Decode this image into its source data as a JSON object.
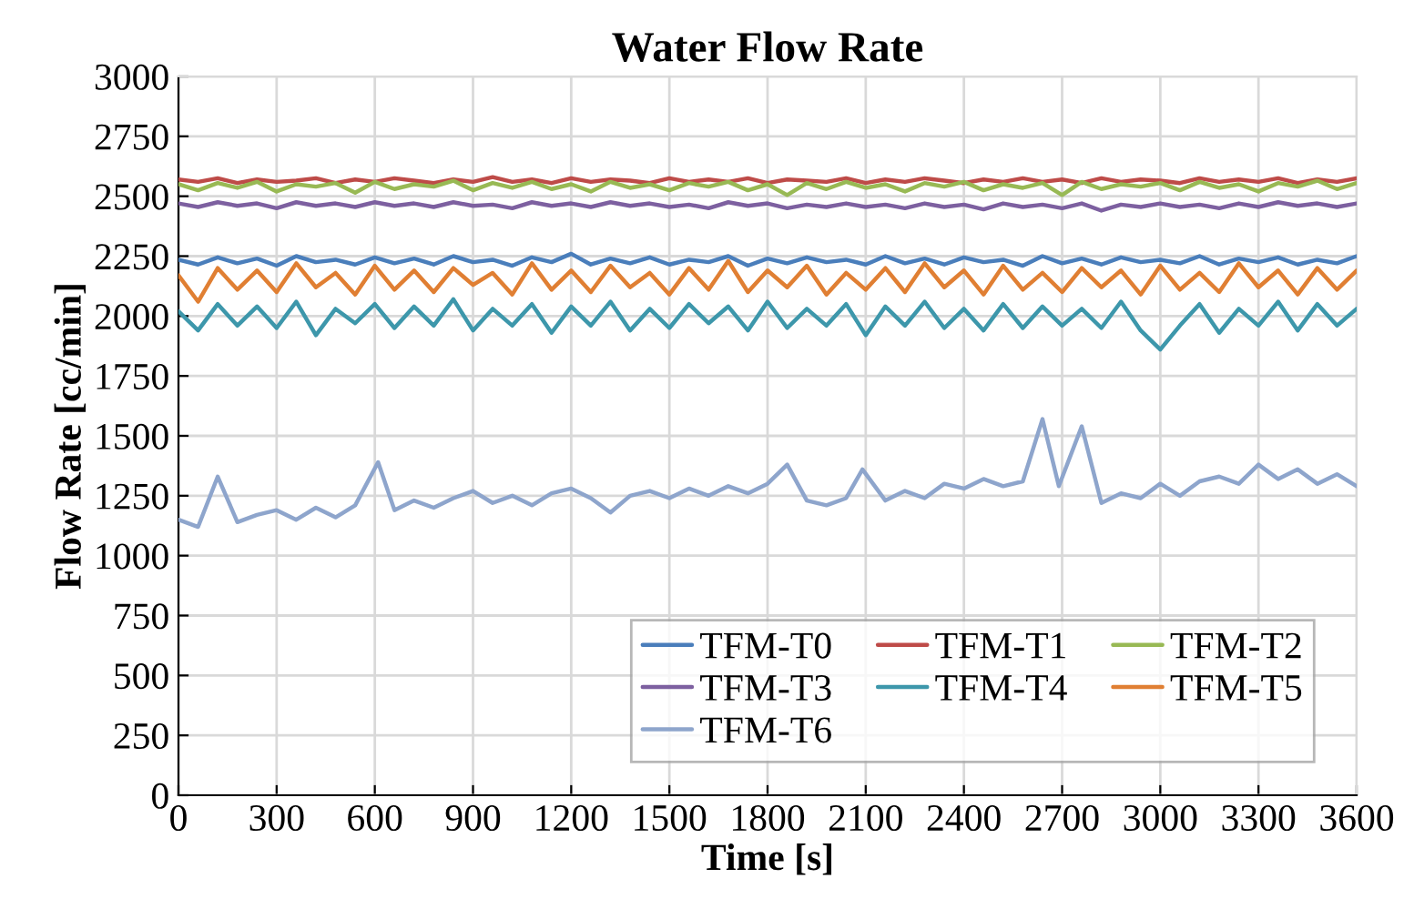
{
  "chart_data": {
    "type": "line",
    "title": "Water Flow Rate",
    "xlabel": "Time [s]",
    "ylabel": "Flow Rate [cc/min]",
    "x": [
      0,
      60,
      120,
      180,
      240,
      300,
      360,
      420,
      480,
      540,
      600,
      660,
      720,
      780,
      840,
      900,
      960,
      1020,
      1080,
      1140,
      1200,
      1260,
      1320,
      1380,
      1440,
      1500,
      1560,
      1620,
      1680,
      1740,
      1800,
      1860,
      1920,
      1980,
      2040,
      2100,
      2160,
      2220,
      2280,
      2340,
      2400,
      2460,
      2520,
      2580,
      2640,
      2700,
      2760,
      2820,
      2880,
      2940,
      3000,
      3060,
      3120,
      3180,
      3240,
      3300,
      3360,
      3420,
      3480,
      3540,
      3600
    ],
    "series": [
      {
        "name": "TFM-T0",
        "color": "#4a7ebb",
        "values": [
          2235,
          2215,
          2245,
          2220,
          2240,
          2210,
          2250,
          2225,
          2235,
          2215,
          2245,
          2220,
          2240,
          2215,
          2250,
          2225,
          2235,
          2210,
          2245,
          2225,
          2260,
          2215,
          2240,
          2220,
          2245,
          2215,
          2235,
          2225,
          2250,
          2210,
          2240,
          2220,
          2245,
          2225,
          2235,
          2215,
          2250,
          2220,
          2240,
          2215,
          2245,
          2225,
          2235,
          2210,
          2250,
          2220,
          2240,
          2215,
          2245,
          2225,
          2235,
          2220,
          2250,
          2215,
          2240,
          2225,
          2245,
          2215,
          2235,
          2220,
          2250
        ]
      },
      {
        "name": "TFM-T1",
        "color": "#be4b48",
        "values": [
          2570,
          2560,
          2575,
          2555,
          2570,
          2560,
          2565,
          2575,
          2555,
          2570,
          2560,
          2575,
          2565,
          2555,
          2570,
          2560,
          2580,
          2560,
          2570,
          2555,
          2575,
          2560,
          2570,
          2565,
          2555,
          2575,
          2560,
          2570,
          2560,
          2575,
          2555,
          2570,
          2565,
          2560,
          2575,
          2555,
          2570,
          2560,
          2575,
          2565,
          2555,
          2570,
          2560,
          2575,
          2560,
          2570,
          2555,
          2575,
          2560,
          2570,
          2565,
          2555,
          2575,
          2560,
          2570,
          2560,
          2575,
          2555,
          2570,
          2560,
          2575
        ]
      },
      {
        "name": "TFM-T2",
        "color": "#98b954",
        "values": [
          2550,
          2525,
          2555,
          2535,
          2560,
          2520,
          2550,
          2540,
          2555,
          2515,
          2560,
          2530,
          2550,
          2540,
          2565,
          2525,
          2555,
          2535,
          2560,
          2530,
          2550,
          2520,
          2560,
          2535,
          2550,
          2525,
          2555,
          2540,
          2560,
          2525,
          2550,
          2505,
          2555,
          2530,
          2560,
          2535,
          2550,
          2520,
          2555,
          2540,
          2560,
          2525,
          2550,
          2535,
          2555,
          2505,
          2560,
          2530,
          2550,
          2540,
          2555,
          2525,
          2560,
          2535,
          2550,
          2520,
          2555,
          2540,
          2565,
          2530,
          2555
        ]
      },
      {
        "name": "TFM-T3",
        "color": "#7d60a0",
        "values": [
          2470,
          2455,
          2475,
          2460,
          2470,
          2450,
          2475,
          2460,
          2470,
          2455,
          2475,
          2460,
          2470,
          2455,
          2475,
          2460,
          2465,
          2450,
          2475,
          2460,
          2470,
          2455,
          2475,
          2460,
          2470,
          2455,
          2465,
          2450,
          2475,
          2460,
          2470,
          2450,
          2465,
          2455,
          2470,
          2455,
          2465,
          2450,
          2470,
          2455,
          2465,
          2445,
          2470,
          2455,
          2465,
          2450,
          2470,
          2440,
          2465,
          2455,
          2470,
          2455,
          2465,
          2450,
          2470,
          2455,
          2475,
          2460,
          2470,
          2455,
          2470
        ]
      },
      {
        "name": "TFM-T4",
        "color": "#3d97ab",
        "values": [
          2020,
          1940,
          2050,
          1960,
          2040,
          1950,
          2060,
          1920,
          2030,
          1970,
          2050,
          1950,
          2040,
          1960,
          2070,
          1940,
          2030,
          1960,
          2050,
          1930,
          2040,
          1960,
          2060,
          1940,
          2030,
          1950,
          2050,
          1970,
          2040,
          1940,
          2060,
          1950,
          2030,
          1960,
          2050,
          1920,
          2040,
          1960,
          2060,
          1950,
          2030,
          1940,
          2050,
          1950,
          2040,
          1960,
          2030,
          1950,
          2060,
          1940,
          1860,
          1960,
          2050,
          1930,
          2030,
          1960,
          2060,
          1940,
          2050,
          1960,
          2030
        ]
      },
      {
        "name": "TFM-T5",
        "color": "#e07f33",
        "values": [
          2170,
          2060,
          2200,
          2110,
          2190,
          2100,
          2220,
          2120,
          2180,
          2090,
          2210,
          2110,
          2190,
          2100,
          2200,
          2130,
          2180,
          2090,
          2220,
          2110,
          2190,
          2100,
          2210,
          2120,
          2180,
          2090,
          2200,
          2110,
          2230,
          2100,
          2190,
          2120,
          2210,
          2090,
          2180,
          2110,
          2200,
          2100,
          2220,
          2120,
          2190,
          2090,
          2210,
          2110,
          2180,
          2100,
          2200,
          2120,
          2190,
          2090,
          2210,
          2110,
          2180,
          2100,
          2220,
          2120,
          2190,
          2090,
          2200,
          2110,
          2190
        ]
      },
      {
        "name": "TFM-T6",
        "color": "#8ea5cc",
        "x": [
          0,
          60,
          120,
          180,
          240,
          300,
          360,
          420,
          480,
          540,
          610,
          660,
          720,
          780,
          840,
          900,
          960,
          1020,
          1080,
          1140,
          1200,
          1260,
          1320,
          1380,
          1440,
          1500,
          1560,
          1620,
          1680,
          1740,
          1800,
          1860,
          1920,
          1980,
          2040,
          2090,
          2160,
          2220,
          2280,
          2340,
          2400,
          2460,
          2520,
          2580,
          2640,
          2690,
          2760,
          2820,
          2880,
          2940,
          3000,
          3060,
          3120,
          3180,
          3240,
          3300,
          3360,
          3420,
          3480,
          3540,
          3600
        ],
        "values": [
          1150,
          1120,
          1330,
          1140,
          1170,
          1190,
          1150,
          1200,
          1160,
          1210,
          1390,
          1190,
          1230,
          1200,
          1240,
          1270,
          1220,
          1250,
          1210,
          1260,
          1280,
          1240,
          1180,
          1250,
          1270,
          1240,
          1280,
          1250,
          1290,
          1260,
          1300,
          1380,
          1230,
          1210,
          1240,
          1360,
          1230,
          1270,
          1240,
          1300,
          1280,
          1320,
          1290,
          1310,
          1570,
          1290,
          1540,
          1220,
          1260,
          1240,
          1300,
          1250,
          1310,
          1330,
          1300,
          1380,
          1320,
          1360,
          1300,
          1340,
          1290
        ]
      }
    ],
    "xlim": [
      0,
      3600
    ],
    "xticks": [
      0,
      300,
      600,
      900,
      1200,
      1500,
      1800,
      2100,
      2400,
      2700,
      3000,
      3300,
      3600
    ],
    "ylim": [
      0,
      3000
    ],
    "yticks": [
      0,
      250,
      500,
      750,
      1000,
      1250,
      1500,
      1750,
      2000,
      2250,
      2500,
      2750,
      3000
    ],
    "grid": true,
    "legend": "lower right",
    "marker": "none",
    "line_style": "solid"
  }
}
